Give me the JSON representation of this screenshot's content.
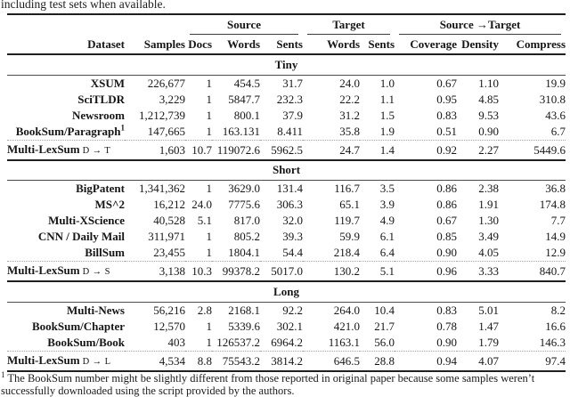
{
  "caption_tail": "including test sets when available.",
  "table": {
    "group_headers": [
      "Source",
      "Target",
      "Source →Target"
    ],
    "columns": [
      "Dataset",
      "Samples",
      "Docs",
      "Words",
      "Sents",
      "Words",
      "Sents",
      "Coverage",
      "Density",
      "Compress"
    ],
    "sections": [
      {
        "label": "Tiny",
        "rows": [
          {
            "dataset": "XSUM",
            "values": [
              "226,677",
              "1",
              "454.5",
              "31.7",
              "24.0",
              "1.0",
              "0.67",
              "1.10",
              "19.9"
            ]
          },
          {
            "dataset": "SciTLDR",
            "values": [
              "3,229",
              "1",
              "5847.7",
              "232.3",
              "22.2",
              "1.1",
              "0.95",
              "4.85",
              "310.8"
            ]
          },
          {
            "dataset": "Newsroom",
            "values": [
              "1,212,739",
              "1",
              "800.1",
              "37.9",
              "31.2",
              "1.5",
              "0.83",
              "9.53",
              "43.6"
            ]
          },
          {
            "dataset": "BookSum/Paragraph",
            "footnote_marker": "1",
            "values": [
              "147,665",
              "1",
              "163.131",
              "8.411",
              "35.8",
              "1.9",
              "0.51",
              "0.90",
              "6.7"
            ]
          }
        ],
        "summary": {
          "dataset": "Multi-LexSum",
          "suffix": "D → T",
          "values": [
            "1,603",
            "10.7",
            "119072.6",
            "5962.5",
            "24.7",
            "1.4",
            "0.92",
            "2.27",
            "5449.6"
          ]
        }
      },
      {
        "label": "Short",
        "rows": [
          {
            "dataset": "BigPatent",
            "values": [
              "1,341,362",
              "1",
              "3629.0",
              "131.4",
              "116.7",
              "3.5",
              "0.86",
              "2.38",
              "36.8"
            ]
          },
          {
            "dataset": "MS^2",
            "values": [
              "16,212",
              "24.0",
              "7775.6",
              "306.3",
              "65.1",
              "3.9",
              "0.86",
              "1.91",
              "174.8"
            ]
          },
          {
            "dataset": "Multi-XScience",
            "values": [
              "40,528",
              "5.1",
              "817.0",
              "32.0",
              "119.7",
              "4.9",
              "0.67",
              "1.30",
              "7.7"
            ]
          },
          {
            "dataset": "CNN / Daily Mail",
            "values": [
              "311,971",
              "1",
              "805.2",
              "39.3",
              "59.9",
              "6.1",
              "0.85",
              "3.49",
              "14.9"
            ]
          },
          {
            "dataset": "BillSum",
            "values": [
              "23,455",
              "1",
              "1804.1",
              "54.4",
              "218.4",
              "6.4",
              "0.90",
              "4.05",
              "12.9"
            ]
          }
        ],
        "summary": {
          "dataset": "Multi-LexSum",
          "suffix": "D → S",
          "values": [
            "3,138",
            "10.3",
            "99378.2",
            "5017.0",
            "130.2",
            "5.1",
            "0.96",
            "3.33",
            "840.7"
          ]
        }
      },
      {
        "label": "Long",
        "rows": [
          {
            "dataset": "Multi-News",
            "values": [
              "56,216",
              "2.8",
              "2168.1",
              "92.2",
              "264.0",
              "10.4",
              "0.83",
              "5.01",
              "8.2"
            ]
          },
          {
            "dataset": "BookSum/Chapter",
            "values": [
              "12,570",
              "1",
              "5339.6",
              "302.1",
              "421.0",
              "21.7",
              "0.78",
              "1.47",
              "16.6"
            ]
          },
          {
            "dataset": "BookSum/Book",
            "values": [
              "403",
              "1",
              "126537.2",
              "6964.2",
              "1163.1",
              "56.0",
              "0.90",
              "1.79",
              "146.3"
            ]
          }
        ],
        "summary": {
          "dataset": "Multi-LexSum",
          "suffix": "D → L",
          "values": [
            "4,534",
            "8.8",
            "75543.2",
            "3814.2",
            "646.5",
            "28.8",
            "0.94",
            "4.07",
            "97.4"
          ]
        }
      }
    ]
  },
  "footnote": {
    "marker": "1",
    "text": "The BookSum number might be slightly different from those reported in original paper because some samples weren’t successfully downloaded using the script provided by the authors."
  }
}
